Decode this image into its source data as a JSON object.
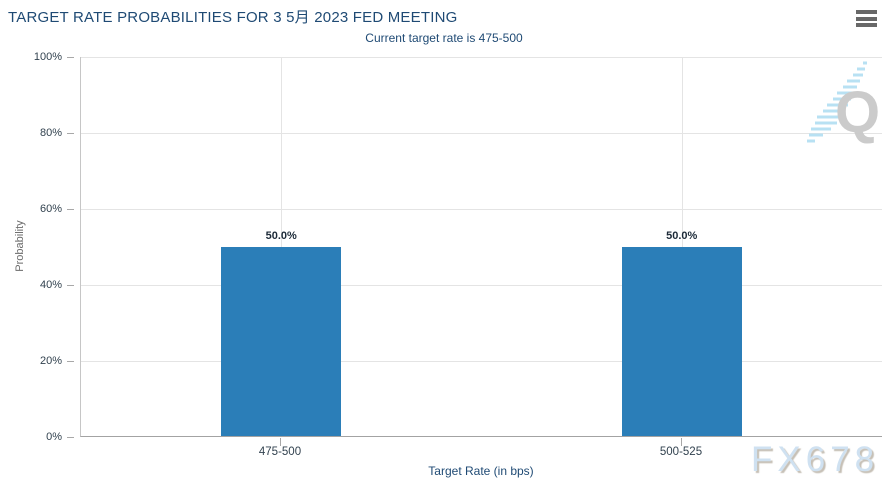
{
  "header": {
    "title": "TARGET RATE PROBABILITIES FOR 3 5月 2023 FED MEETING",
    "subtitle": "Current target rate is 475-500"
  },
  "chart_data": {
    "type": "bar",
    "title": "TARGET RATE PROBABILITIES FOR 3 5月 2023 FED MEETING",
    "subtitle": "Current target rate is 475-500",
    "categories": [
      "475-500",
      "500-525"
    ],
    "values": [
      50.0,
      50.0
    ],
    "value_labels": [
      "50.0%",
      "50.0%"
    ],
    "xlabel": "Target Rate (in bps)",
    "ylabel": "Probability",
    "ylim": [
      0,
      100
    ],
    "ytick_interval": 20,
    "ytick_labels_top_to_bottom": [
      "100%",
      "80%",
      "60%",
      "40%",
      "20%",
      "0%"
    ],
    "grid": true,
    "legend": "none",
    "bar_color": "#2b7eb8"
  },
  "colors": {
    "title_text": "#1f4a74",
    "bar": "#2b7eb8",
    "gridline": "#e4e4e4",
    "axis_text": "#32424f"
  },
  "watermarks": {
    "logo_letter": "Q",
    "brand": "FX678"
  }
}
